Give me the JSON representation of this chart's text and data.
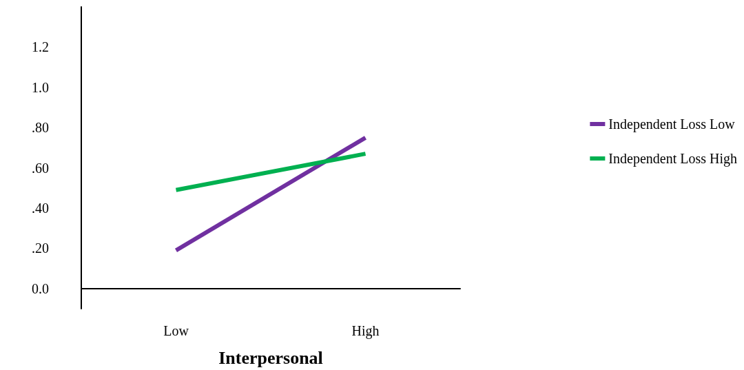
{
  "chart_data": {
    "type": "line",
    "xlabel": "Interpersonal",
    "categories": [
      "Low",
      "High"
    ],
    "series": [
      {
        "name": "Independent Loss Low",
        "color": "#7030a0",
        "values": [
          0.19,
          0.75
        ]
      },
      {
        "name": "Independent Loss High",
        "color": "#00b050",
        "values": [
          0.49,
          0.67
        ]
      }
    ],
    "ylim": [
      -0.1,
      1.4
    ],
    "yticks": [
      {
        "value": 0,
        "label": "0.0"
      },
      {
        "value": 0.2,
        "label": ".20"
      },
      {
        "value": 0.4,
        "label": ".40"
      },
      {
        "value": 0.6,
        "label": ".60"
      },
      {
        "value": 0.8,
        "label": ".80"
      },
      {
        "value": 1.0,
        "label": "1.0"
      },
      {
        "value": 1.2,
        "label": "1.2"
      }
    ],
    "grid": false,
    "legend": "right",
    "marker": "none",
    "line_style": "solid"
  }
}
